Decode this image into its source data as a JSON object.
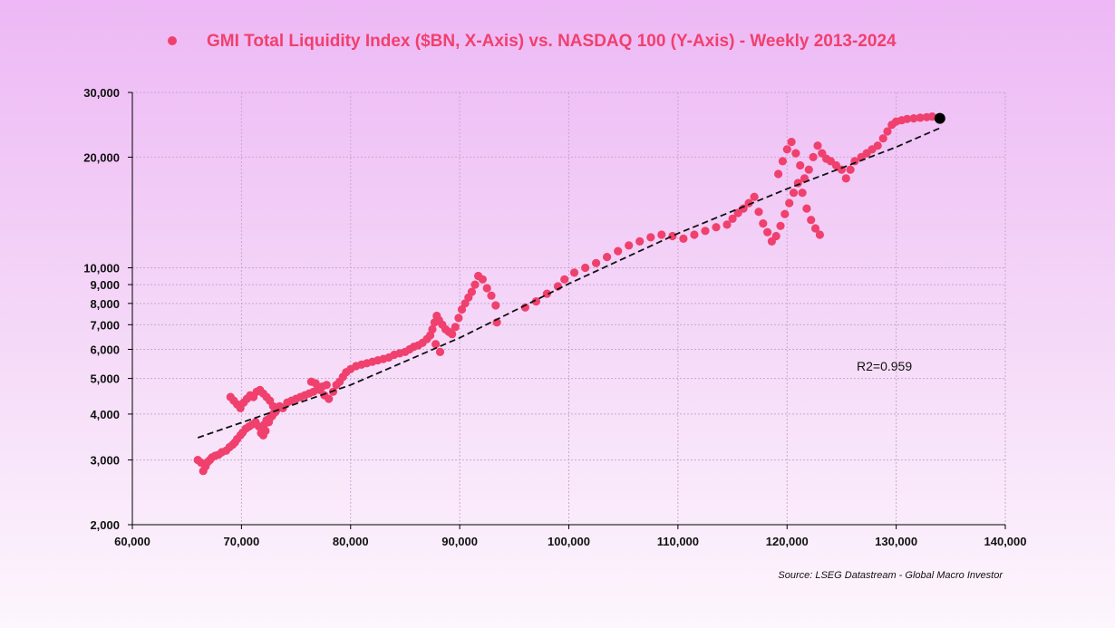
{
  "colors": {
    "series": "#f0406e",
    "trend": "#111111",
    "last_point": "#000000",
    "grid": "#c9a8cf"
  },
  "legend": {
    "label": "GMI Total Liquidity Index ($BN, X-Axis) vs. NASDAQ 100 (Y-Axis) - Weekly 2013-2024"
  },
  "source": "Source: LSEG Datastream - Global Macro Investor",
  "annotation": "R2=0.959",
  "chart_data": {
    "type": "scatter",
    "title": "",
    "xlabel": "",
    "ylabel": "",
    "xlim": [
      60000,
      140000
    ],
    "ylim": [
      2000,
      30000
    ],
    "yscale": "log",
    "grid": true,
    "legend_position": "top",
    "x_ticks": [
      60000,
      70000,
      80000,
      90000,
      100000,
      110000,
      120000,
      130000,
      140000
    ],
    "x_tick_labels": [
      "60,000",
      "70,000",
      "80,000",
      "90,000",
      "100,000",
      "110,000",
      "120,000",
      "130,000",
      "140,000"
    ],
    "y_ticks": [
      2000,
      3000,
      4000,
      5000,
      6000,
      7000,
      8000,
      9000,
      10000,
      20000,
      30000
    ],
    "y_tick_labels": [
      "2,000",
      "3,000",
      "4,000",
      "5,000",
      "6,000",
      "7,000",
      "8,000",
      "9,000",
      "10,000",
      "20,000",
      "30,000"
    ],
    "series": [
      {
        "name": "GMI Total Liquidity Index ($BN, X-Axis) vs. NASDAQ 100 (Y-Axis) - Weekly 2013-2024",
        "points": [
          [
            66000,
            3000
          ],
          [
            66300,
            2950
          ],
          [
            66500,
            2800
          ],
          [
            66700,
            2880
          ],
          [
            66900,
            2960
          ],
          [
            67100,
            3000
          ],
          [
            67300,
            3050
          ],
          [
            67600,
            3080
          ],
          [
            67900,
            3100
          ],
          [
            68200,
            3150
          ],
          [
            68600,
            3180
          ],
          [
            68900,
            3250
          ],
          [
            69200,
            3300
          ],
          [
            69400,
            3350
          ],
          [
            69600,
            3420
          ],
          [
            69900,
            3500
          ],
          [
            70100,
            3560
          ],
          [
            70400,
            3650
          ],
          [
            70700,
            3700
          ],
          [
            71000,
            3750
          ],
          [
            71300,
            3800
          ],
          [
            71600,
            3700
          ],
          [
            71900,
            3650
          ],
          [
            72100,
            3750
          ],
          [
            72300,
            3850
          ],
          [
            72600,
            3900
          ],
          [
            72900,
            4000
          ],
          [
            73200,
            4100
          ],
          [
            73500,
            4200
          ],
          [
            73800,
            4150
          ],
          [
            69000,
            4450
          ],
          [
            69300,
            4350
          ],
          [
            69600,
            4250
          ],
          [
            69900,
            4150
          ],
          [
            70200,
            4300
          ],
          [
            70500,
            4400
          ],
          [
            70800,
            4500
          ],
          [
            71100,
            4450
          ],
          [
            71400,
            4600
          ],
          [
            71700,
            4650
          ],
          [
            72000,
            4550
          ],
          [
            72300,
            4450
          ],
          [
            72600,
            4350
          ],
          [
            72900,
            4200
          ],
          [
            73100,
            4050
          ],
          [
            72800,
            3950
          ],
          [
            72500,
            3800
          ],
          [
            72200,
            3600
          ],
          [
            72000,
            3500
          ],
          [
            71800,
            3550
          ],
          [
            74200,
            4300
          ],
          [
            74600,
            4350
          ],
          [
            75000,
            4400
          ],
          [
            75400,
            4450
          ],
          [
            75800,
            4500
          ],
          [
            76200,
            4550
          ],
          [
            76600,
            4600
          ],
          [
            77000,
            4700
          ],
          [
            77400,
            4750
          ],
          [
            77800,
            4800
          ],
          [
            76400,
            4900
          ],
          [
            76800,
            4850
          ],
          [
            77200,
            4650
          ],
          [
            77600,
            4500
          ],
          [
            78000,
            4400
          ],
          [
            78400,
            4600
          ],
          [
            78700,
            4800
          ],
          [
            79000,
            4900
          ],
          [
            79300,
            5050
          ],
          [
            79600,
            5200
          ],
          [
            80000,
            5300
          ],
          [
            80500,
            5400
          ],
          [
            81000,
            5450
          ],
          [
            81500,
            5500
          ],
          [
            82000,
            5550
          ],
          [
            82500,
            5600
          ],
          [
            83000,
            5650
          ],
          [
            83500,
            5700
          ],
          [
            84000,
            5800
          ],
          [
            84500,
            5850
          ],
          [
            85000,
            5900
          ],
          [
            85400,
            6000
          ],
          [
            85800,
            6100
          ],
          [
            86200,
            6150
          ],
          [
            86600,
            6250
          ],
          [
            87000,
            6400
          ],
          [
            87300,
            6550
          ],
          [
            87500,
            6800
          ],
          [
            87700,
            7100
          ],
          [
            87900,
            7400
          ],
          [
            88100,
            7200
          ],
          [
            88400,
            7000
          ],
          [
            88700,
            6800
          ],
          [
            89000,
            6700
          ],
          [
            89300,
            6600
          ],
          [
            89600,
            6900
          ],
          [
            89900,
            7300
          ],
          [
            90200,
            7700
          ],
          [
            90500,
            8000
          ],
          [
            90800,
            8300
          ],
          [
            91100,
            8600
          ],
          [
            91400,
            9000
          ],
          [
            91700,
            9500
          ],
          [
            92100,
            9300
          ],
          [
            92500,
            8800
          ],
          [
            92900,
            8400
          ],
          [
            93300,
            7900
          ],
          [
            93400,
            7100
          ],
          [
            88200,
            5900
          ],
          [
            87800,
            6200
          ],
          [
            96000,
            7800
          ],
          [
            97000,
            8100
          ],
          [
            98000,
            8500
          ],
          [
            99000,
            8900
          ],
          [
            99600,
            9300
          ],
          [
            100500,
            9700
          ],
          [
            101500,
            10000
          ],
          [
            102500,
            10300
          ],
          [
            103500,
            10700
          ],
          [
            104500,
            11100
          ],
          [
            105500,
            11500
          ],
          [
            106500,
            11800
          ],
          [
            107500,
            12100
          ],
          [
            108500,
            12300
          ],
          [
            109500,
            12200
          ],
          [
            110500,
            12000
          ],
          [
            111500,
            12300
          ],
          [
            112500,
            12600
          ],
          [
            113500,
            12900
          ],
          [
            114500,
            13100
          ],
          [
            115000,
            13600
          ],
          [
            115500,
            14100
          ],
          [
            116000,
            14500
          ],
          [
            116500,
            15000
          ],
          [
            117000,
            15600
          ],
          [
            117400,
            14200
          ],
          [
            117800,
            13200
          ],
          [
            118200,
            12500
          ],
          [
            118600,
            11800
          ],
          [
            119000,
            12200
          ],
          [
            119400,
            13000
          ],
          [
            119800,
            14000
          ],
          [
            120200,
            15000
          ],
          [
            120600,
            16000
          ],
          [
            121000,
            17000
          ],
          [
            121400,
            16000
          ],
          [
            121800,
            14500
          ],
          [
            122200,
            13500
          ],
          [
            122600,
            12800
          ],
          [
            123000,
            12300
          ],
          [
            119200,
            18000
          ],
          [
            119600,
            19500
          ],
          [
            120000,
            21000
          ],
          [
            120400,
            22000
          ],
          [
            120800,
            20500
          ],
          [
            121200,
            19000
          ],
          [
            121600,
            17500
          ],
          [
            122000,
            18500
          ],
          [
            122400,
            20000
          ],
          [
            122800,
            21500
          ],
          [
            123200,
            20500
          ],
          [
            123600,
            19800
          ],
          [
            124000,
            19500
          ],
          [
            124500,
            19000
          ],
          [
            125000,
            18500
          ],
          [
            125400,
            17500
          ],
          [
            125800,
            18500
          ],
          [
            126200,
            19500
          ],
          [
            126800,
            20000
          ],
          [
            127300,
            20500
          ],
          [
            127800,
            21000
          ],
          [
            128300,
            21500
          ],
          [
            128800,
            22500
          ],
          [
            129200,
            23500
          ],
          [
            129600,
            24500
          ],
          [
            130000,
            25000
          ],
          [
            130500,
            25200
          ],
          [
            131000,
            25400
          ],
          [
            131600,
            25500
          ],
          [
            132200,
            25600
          ],
          [
            132800,
            25700
          ],
          [
            133300,
            25800
          ]
        ]
      }
    ],
    "last_point": [
      134000,
      25500
    ],
    "trendline": {
      "type": "exponential",
      "points": [
        [
          66000,
          3450
        ],
        [
          80000,
          4800
        ],
        [
          90000,
          6450
        ],
        [
          100000,
          9050
        ],
        [
          110000,
          12400
        ],
        [
          120000,
          16400
        ],
        [
          130000,
          21300
        ],
        [
          134000,
          24000
        ]
      ],
      "r2": 0.959
    }
  }
}
